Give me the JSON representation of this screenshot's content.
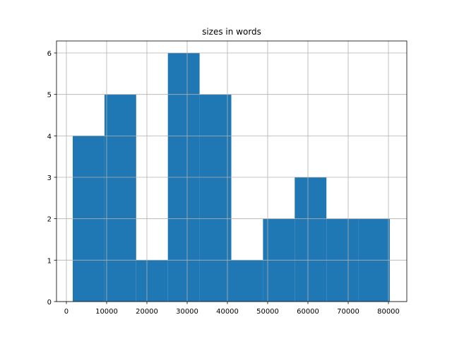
{
  "chart_data": {
    "type": "histogram",
    "title": "sizes in words",
    "bins": [
      1579,
      9456,
      17333,
      25210,
      33088,
      40965,
      48842,
      56719,
      64596,
      72474,
      80351
    ],
    "values": [
      4,
      5,
      1,
      6,
      5,
      1,
      2,
      3,
      2,
      2
    ],
    "color": "#1f77b4",
    "xlim": [
      -2456,
      84561
    ],
    "xticks": [
      0,
      10000,
      20000,
      30000,
      40000,
      50000,
      60000,
      70000,
      80000
    ],
    "ylim": [
      0,
      6.29
    ],
    "yticks": [
      0,
      1,
      2,
      3,
      4,
      5,
      6
    ],
    "grid": true
  }
}
